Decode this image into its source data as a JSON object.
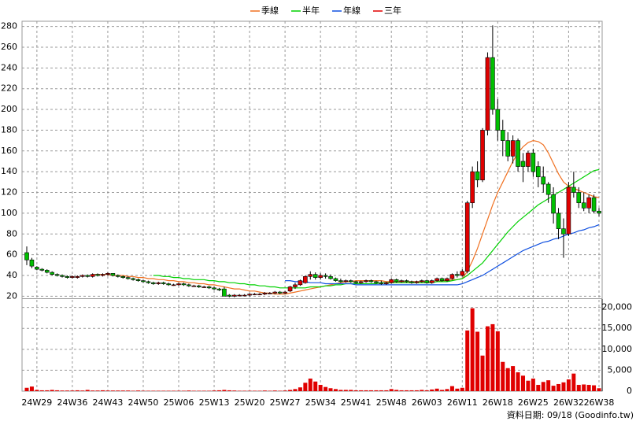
{
  "chart_data": {
    "type": "candlestick",
    "categories": [
      null,
      null,
      "24W29",
      null,
      null,
      null,
      null,
      null,
      null,
      "24W36",
      null,
      null,
      null,
      null,
      null,
      null,
      "24W43",
      null,
      null,
      null,
      null,
      null,
      null,
      "24W50",
      null,
      null,
      null,
      null,
      null,
      null,
      "25W06",
      null,
      null,
      null,
      null,
      null,
      null,
      "25W13",
      null,
      null,
      null,
      null,
      null,
      null,
      "25W20",
      null,
      null,
      null,
      null,
      null,
      null,
      "25W27",
      null,
      null,
      null,
      null,
      null,
      null,
      "25W34",
      null,
      null,
      null,
      null,
      null,
      null,
      "25W41",
      null,
      null,
      null,
      null,
      null,
      null,
      "25W48",
      null,
      null,
      null,
      null,
      null,
      null,
      "26W03",
      null,
      null,
      null,
      null,
      null,
      null,
      "26W11",
      null,
      null,
      null,
      null,
      null,
      null,
      "26W18",
      null,
      null,
      null,
      null,
      null,
      null,
      "26W25",
      null,
      null,
      null,
      null,
      null,
      null,
      "26W32",
      null,
      null,
      null,
      null,
      null,
      "26W38"
    ],
    "open": [
      62,
      55,
      48,
      46,
      45,
      43,
      41,
      40,
      39,
      38,
      38,
      39,
      40,
      39,
      41,
      40,
      41,
      42,
      40,
      39,
      38,
      37,
      36,
      35,
      34,
      33,
      32,
      33,
      32,
      31,
      31,
      32,
      31,
      30,
      30,
      29,
      29,
      28,
      27,
      27,
      21,
      20,
      21,
      21,
      21,
      22,
      22,
      22,
      23,
      23,
      24,
      23,
      25,
      29,
      31,
      33,
      39,
      41,
      38,
      40,
      39,
      37,
      35,
      34,
      35,
      34,
      33,
      34,
      35,
      34,
      33,
      32,
      33,
      36,
      34,
      35,
      34,
      33,
      34,
      35,
      33,
      35,
      37,
      35,
      37,
      41,
      40,
      44,
      110,
      140,
      132,
      180,
      250,
      200,
      180,
      170,
      155,
      170,
      150,
      145,
      158,
      145,
      135,
      128,
      118,
      100,
      85,
      80,
      125,
      120,
      110,
      105,
      115,
      102
    ],
    "high": [
      68,
      57,
      49,
      47,
      46,
      44,
      42,
      41,
      40,
      40,
      40,
      41,
      41,
      42,
      42,
      42,
      43,
      42,
      41,
      40,
      39,
      38,
      37,
      36,
      35,
      34,
      34,
      34,
      33,
      32,
      33,
      33,
      32,
      31,
      31,
      30,
      30,
      29,
      28,
      29,
      22,
      22,
      22,
      22,
      23,
      23,
      23,
      24,
      24,
      25,
      25,
      25,
      30,
      33,
      36,
      40,
      44,
      43,
      42,
      42,
      41,
      38,
      37,
      36,
      36,
      35,
      35,
      36,
      36,
      35,
      35,
      34,
      37,
      37,
      36,
      36,
      35,
      35,
      36,
      36,
      36,
      38,
      38,
      38,
      42,
      44,
      46,
      112,
      145,
      150,
      182,
      255,
      281,
      210,
      190,
      178,
      175,
      172,
      158,
      160,
      162,
      150,
      145,
      130,
      125,
      105,
      95,
      130,
      140,
      125,
      120,
      118,
      118,
      105
    ],
    "low": [
      50,
      47,
      45,
      44,
      42,
      40,
      39,
      38,
      37,
      37,
      37,
      38,
      38,
      38,
      39,
      39,
      40,
      39,
      38,
      37,
      36,
      35,
      34,
      33,
      32,
      31,
      31,
      31,
      30,
      30,
      30,
      30,
      29,
      29,
      28,
      28,
      27,
      26,
      25,
      20,
      19,
      19,
      20,
      20,
      20,
      21,
      21,
      21,
      22,
      22,
      22,
      22,
      24,
      27,
      30,
      32,
      36,
      36,
      36,
      37,
      36,
      34,
      33,
      33,
      33,
      32,
      32,
      33,
      33,
      32,
      31,
      31,
      32,
      33,
      33,
      33,
      32,
      32,
      33,
      32,
      32,
      34,
      34,
      34,
      36,
      38,
      39,
      42,
      105,
      125,
      130,
      175,
      195,
      170,
      155,
      150,
      148,
      140,
      130,
      140,
      135,
      125,
      120,
      110,
      90,
      75,
      57,
      78,
      115,
      105,
      102,
      100,
      100,
      97
    ],
    "close": [
      55,
      49,
      46,
      45,
      43,
      41,
      40,
      39,
      38,
      39,
      39,
      40,
      39,
      41,
      40,
      41,
      42,
      40,
      39,
      38,
      37,
      36,
      35,
      34,
      33,
      32,
      33,
      32,
      31,
      31,
      32,
      31,
      30,
      30,
      29,
      29,
      28,
      27,
      26,
      20,
      20,
      21,
      21,
      21,
      22,
      22,
      22,
      23,
      23,
      24,
      23,
      24,
      29,
      31,
      35,
      39,
      41,
      38,
      40,
      39,
      37,
      35,
      34,
      35,
      34,
      33,
      34,
      35,
      34,
      33,
      32,
      33,
      36,
      34,
      35,
      34,
      33,
      34,
      35,
      33,
      35,
      37,
      35,
      37,
      41,
      40,
      44,
      110,
      140,
      132,
      180,
      250,
      200,
      180,
      170,
      155,
      170,
      145,
      145,
      158,
      140,
      135,
      128,
      118,
      100,
      85,
      80,
      125,
      120,
      110,
      105,
      115,
      102,
      100
    ],
    "up_color": "#e00000",
    "down_color": "#00c000",
    "ylim": [
      18,
      285
    ],
    "yticks": [
      20,
      40,
      60,
      80,
      100,
      120,
      140,
      160,
      180,
      200,
      220,
      240,
      260,
      280
    ],
    "grid": true,
    "series": [
      {
        "name": "季線",
        "color": "#f07020",
        "values": [
          null,
          null,
          null,
          null,
          null,
          null,
          null,
          null,
          null,
          null,
          null,
          null,
          null,
          41,
          41,
          41,
          41,
          40,
          40,
          40,
          39,
          39,
          38,
          38,
          37,
          37,
          36,
          36,
          35,
          35,
          34,
          34,
          33,
          33,
          32,
          32,
          31,
          31,
          30,
          29,
          28,
          27,
          27,
          26,
          25,
          25,
          24,
          23,
          23,
          22,
          22,
          22,
          23,
          24,
          25,
          26,
          27,
          28,
          29,
          30,
          31,
          32,
          33,
          34,
          34,
          35,
          35,
          35,
          35,
          35,
          35,
          34,
          34,
          34,
          34,
          34,
          34,
          34,
          34,
          34,
          34,
          34,
          35,
          35,
          36,
          36,
          37,
          44,
          54,
          66,
          80,
          94,
          108,
          120,
          130,
          140,
          150,
          158,
          164,
          168,
          170,
          169,
          166,
          158,
          148,
          138,
          130,
          126,
          124,
          122,
          120,
          118,
          116,
          115
        ]
      },
      {
        "name": "半年",
        "color": "#00d000",
        "values": [
          null,
          null,
          null,
          null,
          null,
          null,
          null,
          null,
          null,
          null,
          null,
          null,
          null,
          null,
          null,
          null,
          null,
          null,
          null,
          null,
          null,
          null,
          null,
          null,
          null,
          40,
          40,
          39,
          39,
          38,
          38,
          37,
          37,
          36,
          36,
          36,
          35,
          35,
          34,
          34,
          33,
          33,
          32,
          32,
          31,
          31,
          30,
          30,
          29,
          29,
          28,
          28,
          28,
          28,
          28,
          28,
          29,
          29,
          29,
          30,
          30,
          31,
          31,
          32,
          32,
          32,
          32,
          32,
          32,
          32,
          33,
          33,
          33,
          33,
          33,
          33,
          33,
          33,
          33,
          33,
          33,
          34,
          34,
          34,
          35,
          36,
          37,
          40,
          44,
          48,
          52,
          58,
          64,
          70,
          76,
          82,
          87,
          92,
          96,
          100,
          104,
          108,
          111,
          114,
          117,
          120,
          123,
          126,
          129,
          132,
          135,
          138,
          141,
          142
        ]
      },
      {
        "name": "年線",
        "color": "#1050e0",
        "values": [
          null,
          null,
          null,
          null,
          null,
          null,
          null,
          null,
          null,
          null,
          null,
          null,
          null,
          null,
          null,
          null,
          null,
          null,
          null,
          null,
          null,
          null,
          null,
          null,
          null,
          null,
          null,
          null,
          null,
          null,
          null,
          null,
          null,
          null,
          null,
          null,
          null,
          null,
          null,
          null,
          null,
          null,
          null,
          null,
          null,
          null,
          null,
          null,
          null,
          null,
          null,
          35,
          35,
          34,
          34,
          34,
          33,
          33,
          33,
          32,
          32,
          32,
          32,
          32,
          32,
          31,
          31,
          31,
          31,
          31,
          31,
          31,
          31,
          31,
          31,
          31,
          31,
          31,
          31,
          31,
          31,
          31,
          31,
          31,
          31,
          31,
          32,
          34,
          36,
          38,
          40,
          43,
          46,
          49,
          52,
          55,
          58,
          61,
          64,
          66,
          68,
          70,
          72,
          73,
          75,
          76,
          78,
          80,
          81,
          83,
          84,
          86,
          87,
          89
        ]
      },
      {
        "name": "三年",
        "color": "#e00000",
        "values": [
          null,
          null,
          null,
          null,
          null,
          null,
          null,
          null,
          null,
          null,
          null,
          null,
          null,
          null,
          null,
          null,
          null,
          null,
          null,
          null,
          null,
          null,
          null,
          null,
          null,
          null,
          null,
          null,
          null,
          null,
          null,
          null,
          null,
          null,
          null,
          null,
          null,
          null,
          null,
          null,
          null,
          null,
          null,
          null,
          null,
          null,
          null,
          null,
          null,
          null,
          null,
          null,
          null,
          null,
          null,
          null,
          null,
          null,
          null,
          null,
          null,
          null,
          null,
          null,
          null,
          null,
          null,
          null,
          null,
          null,
          null,
          null,
          null,
          null,
          null,
          null,
          null,
          null,
          null,
          null,
          null,
          null,
          null,
          null,
          null,
          null,
          null,
          null,
          null,
          null,
          null,
          null,
          null,
          null,
          null,
          null,
          null,
          null,
          null,
          null,
          null,
          null,
          null,
          null,
          null,
          null,
          null,
          null,
          null,
          null,
          null,
          null,
          null,
          null
        ]
      }
    ],
    "volume": {
      "color": "#e00000",
      "ylim": [
        0,
        22000
      ],
      "yticks": [
        0,
        {
          "value": 5000,
          "label": "5,000"
        },
        {
          "value": 10000,
          "label": "10,000"
        },
        {
          "value": 15000,
          "label": "15,000"
        },
        {
          "value": 20000,
          "label": "20,000"
        }
      ],
      "values": [
        800,
        1100,
        300,
        200,
        200,
        300,
        200,
        150,
        150,
        150,
        200,
        150,
        300,
        150,
        150,
        200,
        150,
        150,
        150,
        150,
        150,
        100,
        150,
        100,
        100,
        100,
        100,
        100,
        100,
        100,
        100,
        100,
        150,
        100,
        100,
        100,
        100,
        150,
        200,
        300,
        200,
        150,
        100,
        100,
        100,
        100,
        100,
        150,
        100,
        150,
        100,
        150,
        300,
        500,
        900,
        2000,
        3000,
        2300,
        1500,
        1000,
        700,
        500,
        300,
        300,
        300,
        200,
        200,
        200,
        200,
        200,
        200,
        200,
        500,
        300,
        200,
        200,
        200,
        200,
        300,
        200,
        400,
        600,
        300,
        500,
        1200,
        600,
        800,
        14500,
        19800,
        14200,
        8500,
        15500,
        16000,
        14300,
        7000,
        5500,
        6000,
        4500,
        3700,
        2500,
        3000,
        1500,
        2200,
        2600,
        1300,
        1700,
        2100,
        2800,
        4200,
        1500,
        1600,
        1500,
        1400,
        700
      ]
    },
    "footnote": "資料日期: 09/18 (Goodinfo.tw)"
  }
}
